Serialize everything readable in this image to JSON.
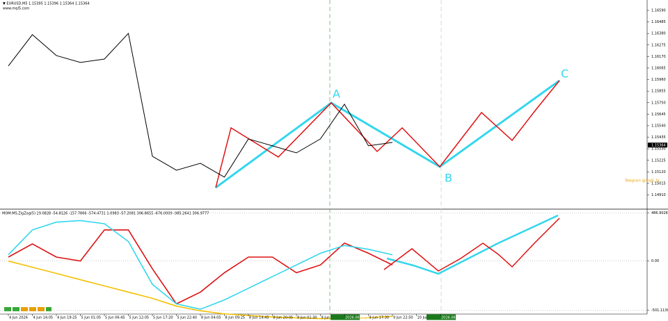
{
  "chart_data": [
    {
      "type": "line",
      "title": "▼ EURUSD,M5  1.15395 1.15396 1.15364 1.15364",
      "subtitle": "www.mql5.com",
      "annotations": [
        "A",
        "B",
        "C",
        "Telegram @mql5_fx"
      ],
      "current_price": {
        "value": 1.15364,
        "label": "1.15364"
      },
      "ylim": [
        1.14787,
        1.16672
      ],
      "yticks": [
        {
          "value": 1.1659,
          "label": "1.16590"
        },
        {
          "value": 1.16485,
          "label": "1.16485"
        },
        {
          "value": 1.1638,
          "label": "1.16380"
        },
        {
          "value": 1.16275,
          "label": "1.16275"
        },
        {
          "value": 1.1617,
          "label": "1.16170"
        },
        {
          "value": 1.16065,
          "label": "1.16065"
        },
        {
          "value": 1.1596,
          "label": "1.15960"
        },
        {
          "value": 1.15855,
          "label": "1.15855"
        },
        {
          "value": 1.1575,
          "label": "1.15750"
        },
        {
          "value": 1.15645,
          "label": "1.15645"
        },
        {
          "value": 1.1554,
          "label": "1.15540"
        },
        {
          "value": 1.15435,
          "label": "1.15435"
        },
        {
          "value": 1.1533,
          "label": "1.15330"
        },
        {
          "value": 1.15225,
          "label": "1.15225"
        },
        {
          "value": 1.1512,
          "label": "1.15120"
        },
        {
          "value": 1.15015,
          "label": "1.15015"
        },
        {
          "value": 1.1491,
          "label": "1.14910"
        }
      ],
      "series": [
        {
          "name": "EURUSD",
          "color": "#000000",
          "values": [
            1.16084,
            1.16369,
            1.16179,
            1.16116,
            1.16147,
            1.16381,
            1.15262,
            1.15135,
            1.15198,
            1.15072,
            1.1542,
            1.15357,
            1.15293,
            1.1542,
            1.15736,
            1.15357,
            1.15388,
            null,
            null
          ]
        }
      ]
    },
    {
      "type": "line",
      "title": "MOM.MS.ZigZag(5) 29.0828 -54.8126 -157.7866 -574.4731 1.0983 -57.2081 306.8655 -676.0009 -985.2641 306.9777",
      "categories": [
        "4 Jun 2026",
        "4 Jun 14:05",
        "4 Jun 19:25",
        "5 Jun 01:05",
        "5 Jun 06:45",
        "5 Jun 12:05",
        "5 Jun 17:20",
        "5 Jun 22:40",
        "8 Jun 04:05",
        "8 Jun 09:25",
        "8 Jun 14:45",
        "8 Jun 20:05",
        "9 Jun 01:30",
        "9 Jun 06:50",
        "2026.06.09 12:00",
        "9 Jun 17:30",
        "9 Jun 22:50",
        "10 Jun 04:10",
        "2026.06.10 18:45"
      ],
      "highlighted": [
        14,
        18
      ],
      "ylim": [
        -560,
        520
      ],
      "yticks": [
        486.9026,
        {
          "value": 0,
          "label": "0.00"
        },
        -501.1138
      ],
      "series": [
        {
          "name": "Fast",
          "color": "#dd1111",
          "values": [
            40,
            174,
            40,
            0,
            316,
            316,
            -79,
            -435,
            -316,
            -119,
            40,
            40,
            -119,
            -40,
            182,
            79,
            -40,
            null,
            null
          ]
        },
        {
          "name": "Slow",
          "color": "#33d6ee",
          "values": [
            63,
            316,
            395,
            411,
            379,
            198,
            -237,
            -435,
            -490,
            -395,
            -277,
            -158,
            -40,
            79,
            158,
            119,
            63,
            null,
            null
          ]
        },
        {
          "name": "Trend",
          "color": "#f5c000",
          "values": [
            0,
            -63,
            -126,
            -190,
            -253,
            -316,
            -379,
            -458,
            -506,
            -537,
            -553,
            -569,
            -577,
            -585,
            -585,
            -577,
            -561,
            null,
            null
          ]
        }
      ]
    }
  ]
}
